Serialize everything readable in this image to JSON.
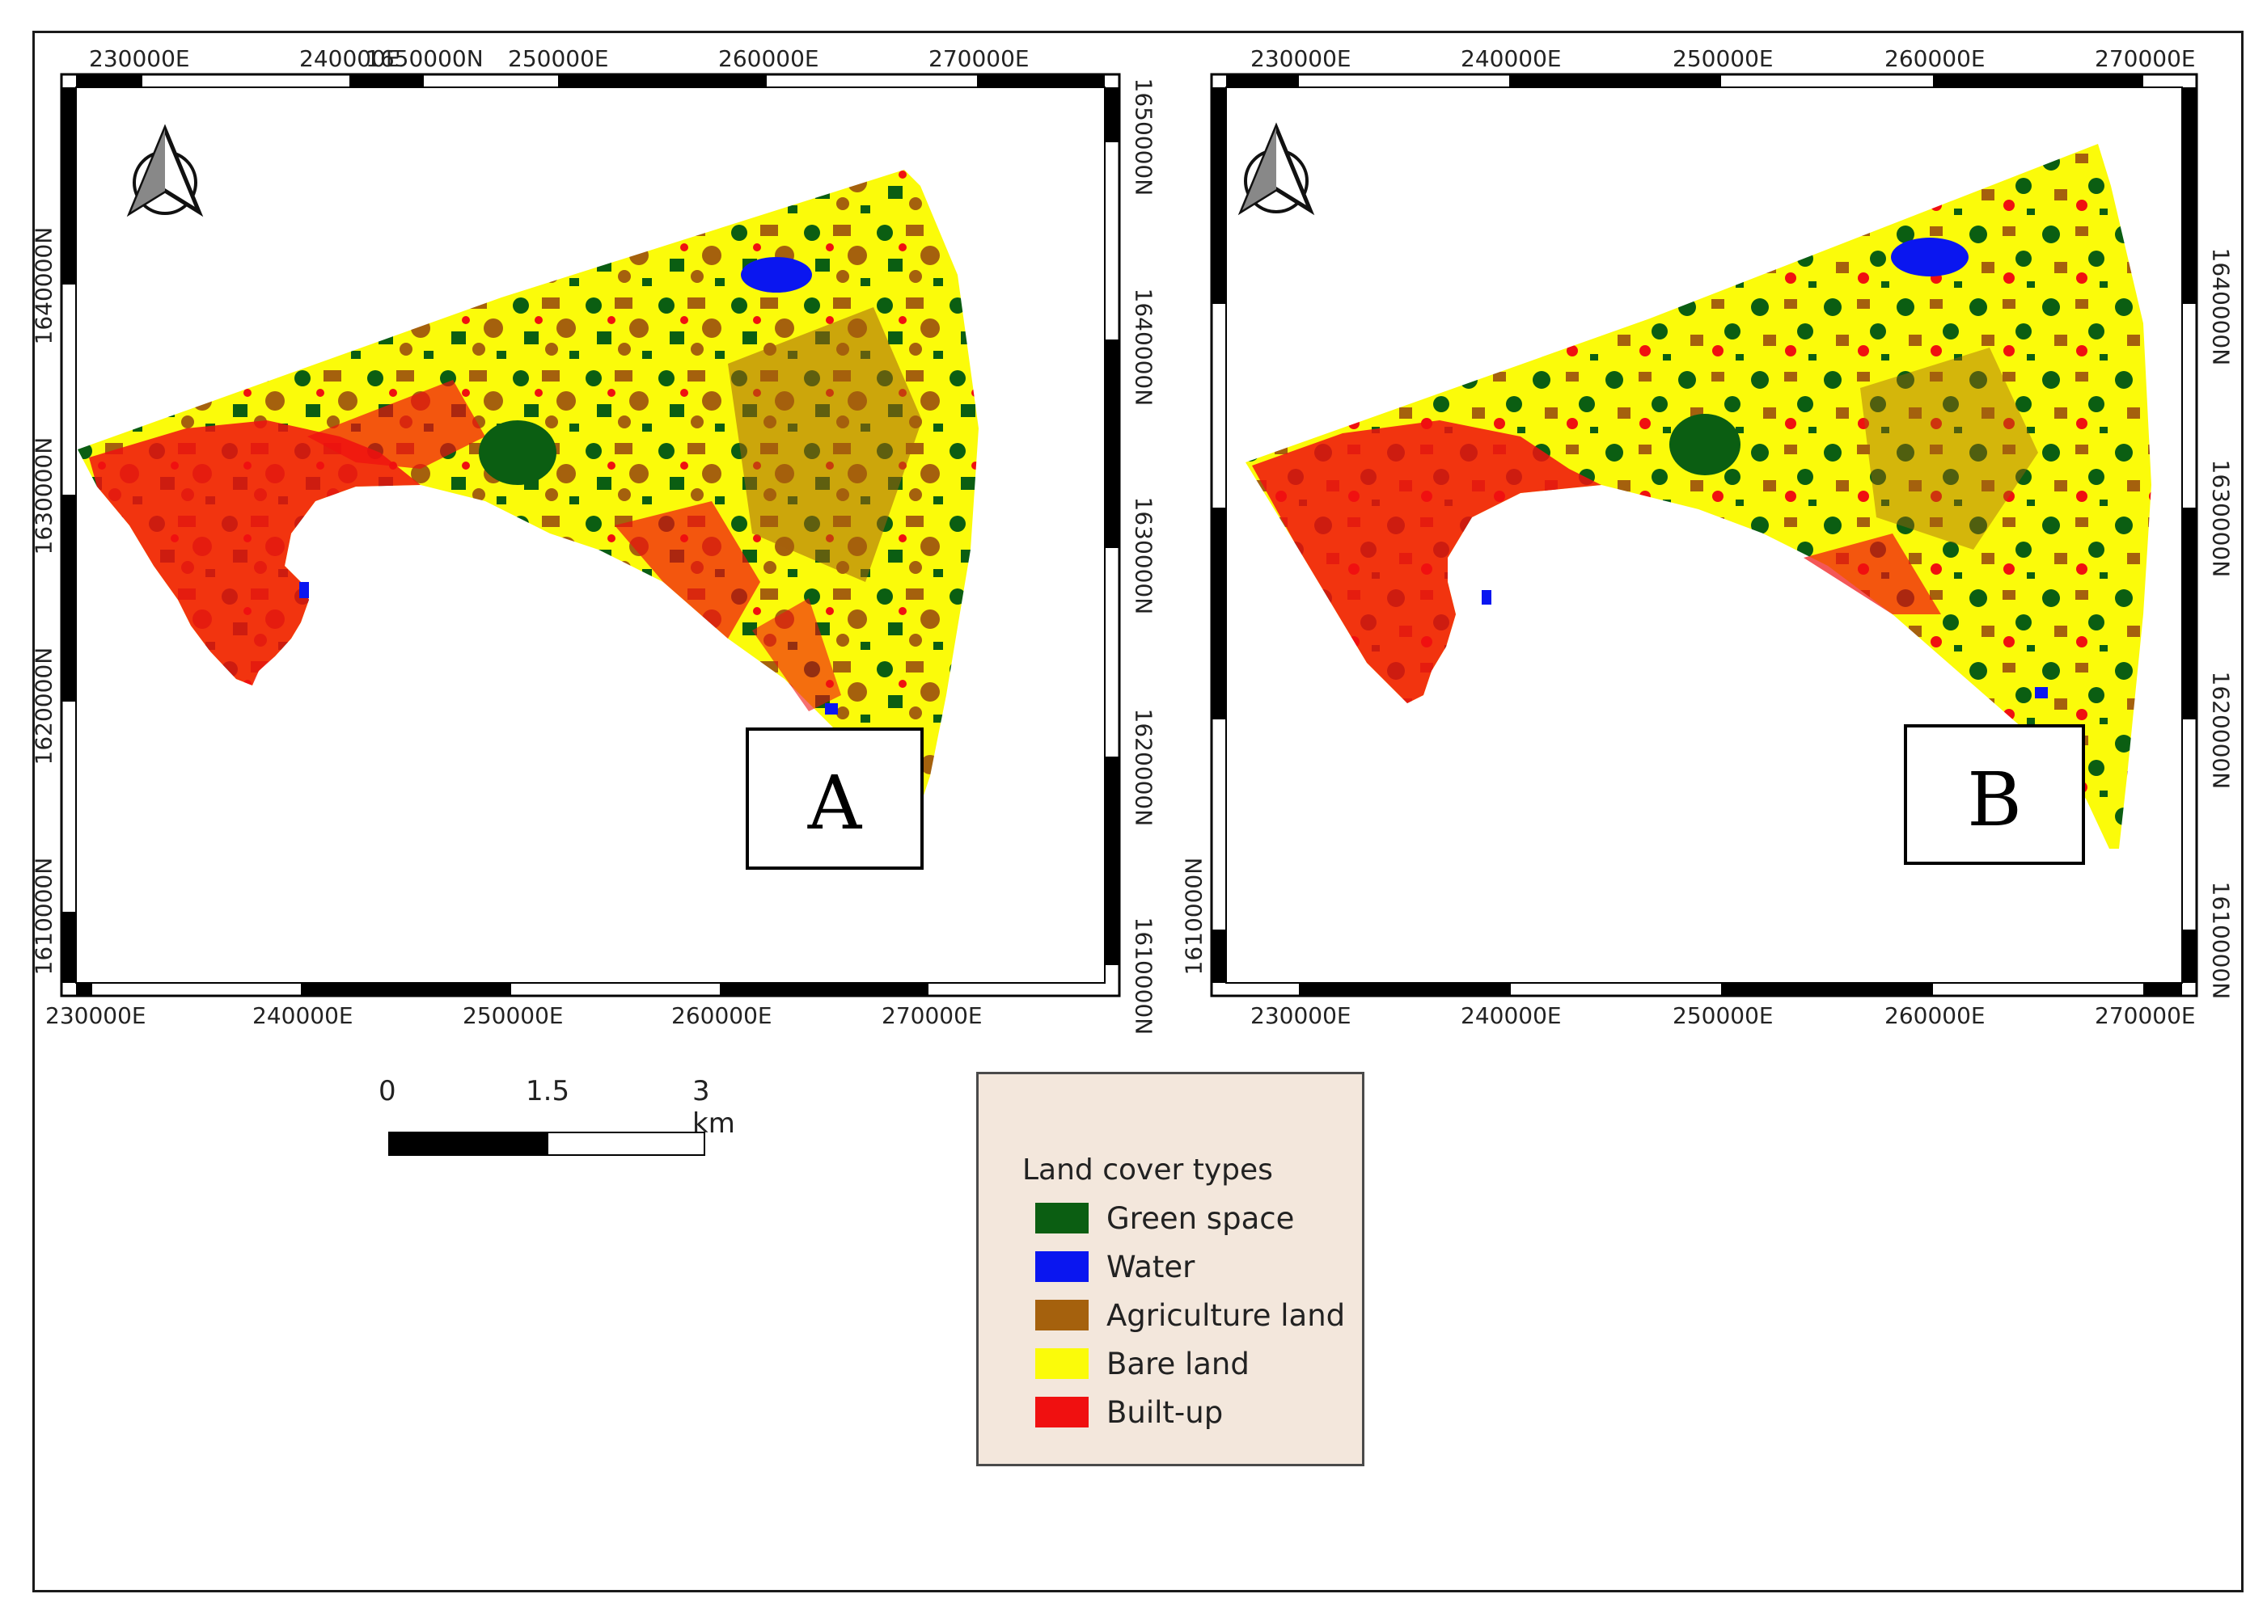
{
  "maps": [
    {
      "label": "A",
      "x_ticks_top": [
        "230000E",
        "240000E",
        "1650000N",
        "250000E",
        "260000E",
        "270000E"
      ],
      "x_ticks_bottom": [
        "230000E",
        "240000E",
        "250000E",
        "260000E",
        "270000E"
      ],
      "y_ticks_left": [
        "1640000N",
        "1630000N",
        "1620000N",
        "1610000N"
      ],
      "y_ticks_right": [
        "1650000N",
        "1640000N",
        "1630000N",
        "1620000N",
        "1610000N"
      ]
    },
    {
      "label": "B",
      "x_ticks_top": [
        "230000E",
        "240000E",
        "250000E",
        "260000E",
        "270000E"
      ],
      "x_ticks_bottom": [
        "230000E",
        "240000E",
        "250000E",
        "260000E",
        "270000E"
      ],
      "y_ticks_left": [
        "1610000N"
      ],
      "y_ticks_right": [
        "1640000N",
        "1630000N",
        "1620000N",
        "1610000N"
      ]
    }
  ],
  "scale_bar": {
    "labels": [
      "0",
      "1.5",
      "3 km"
    ]
  },
  "legend": {
    "title": "Land cover types",
    "items": [
      {
        "label": "Green space",
        "color": "#0b5e12"
      },
      {
        "label": "Water",
        "color": "#0a16f0"
      },
      {
        "label": "Agriculture land",
        "color": "#a5610d"
      },
      {
        "label": "Bare land",
        "color": "#fbfb0a"
      },
      {
        "label": "Built-up",
        "color": "#f01010"
      }
    ]
  },
  "colors": {
    "green": "#0b5e12",
    "water": "#0a16f0",
    "agri": "#a5610d",
    "bare": "#fbfb0a",
    "built": "#f01010",
    "legend_bg": "#f3e7dc"
  }
}
